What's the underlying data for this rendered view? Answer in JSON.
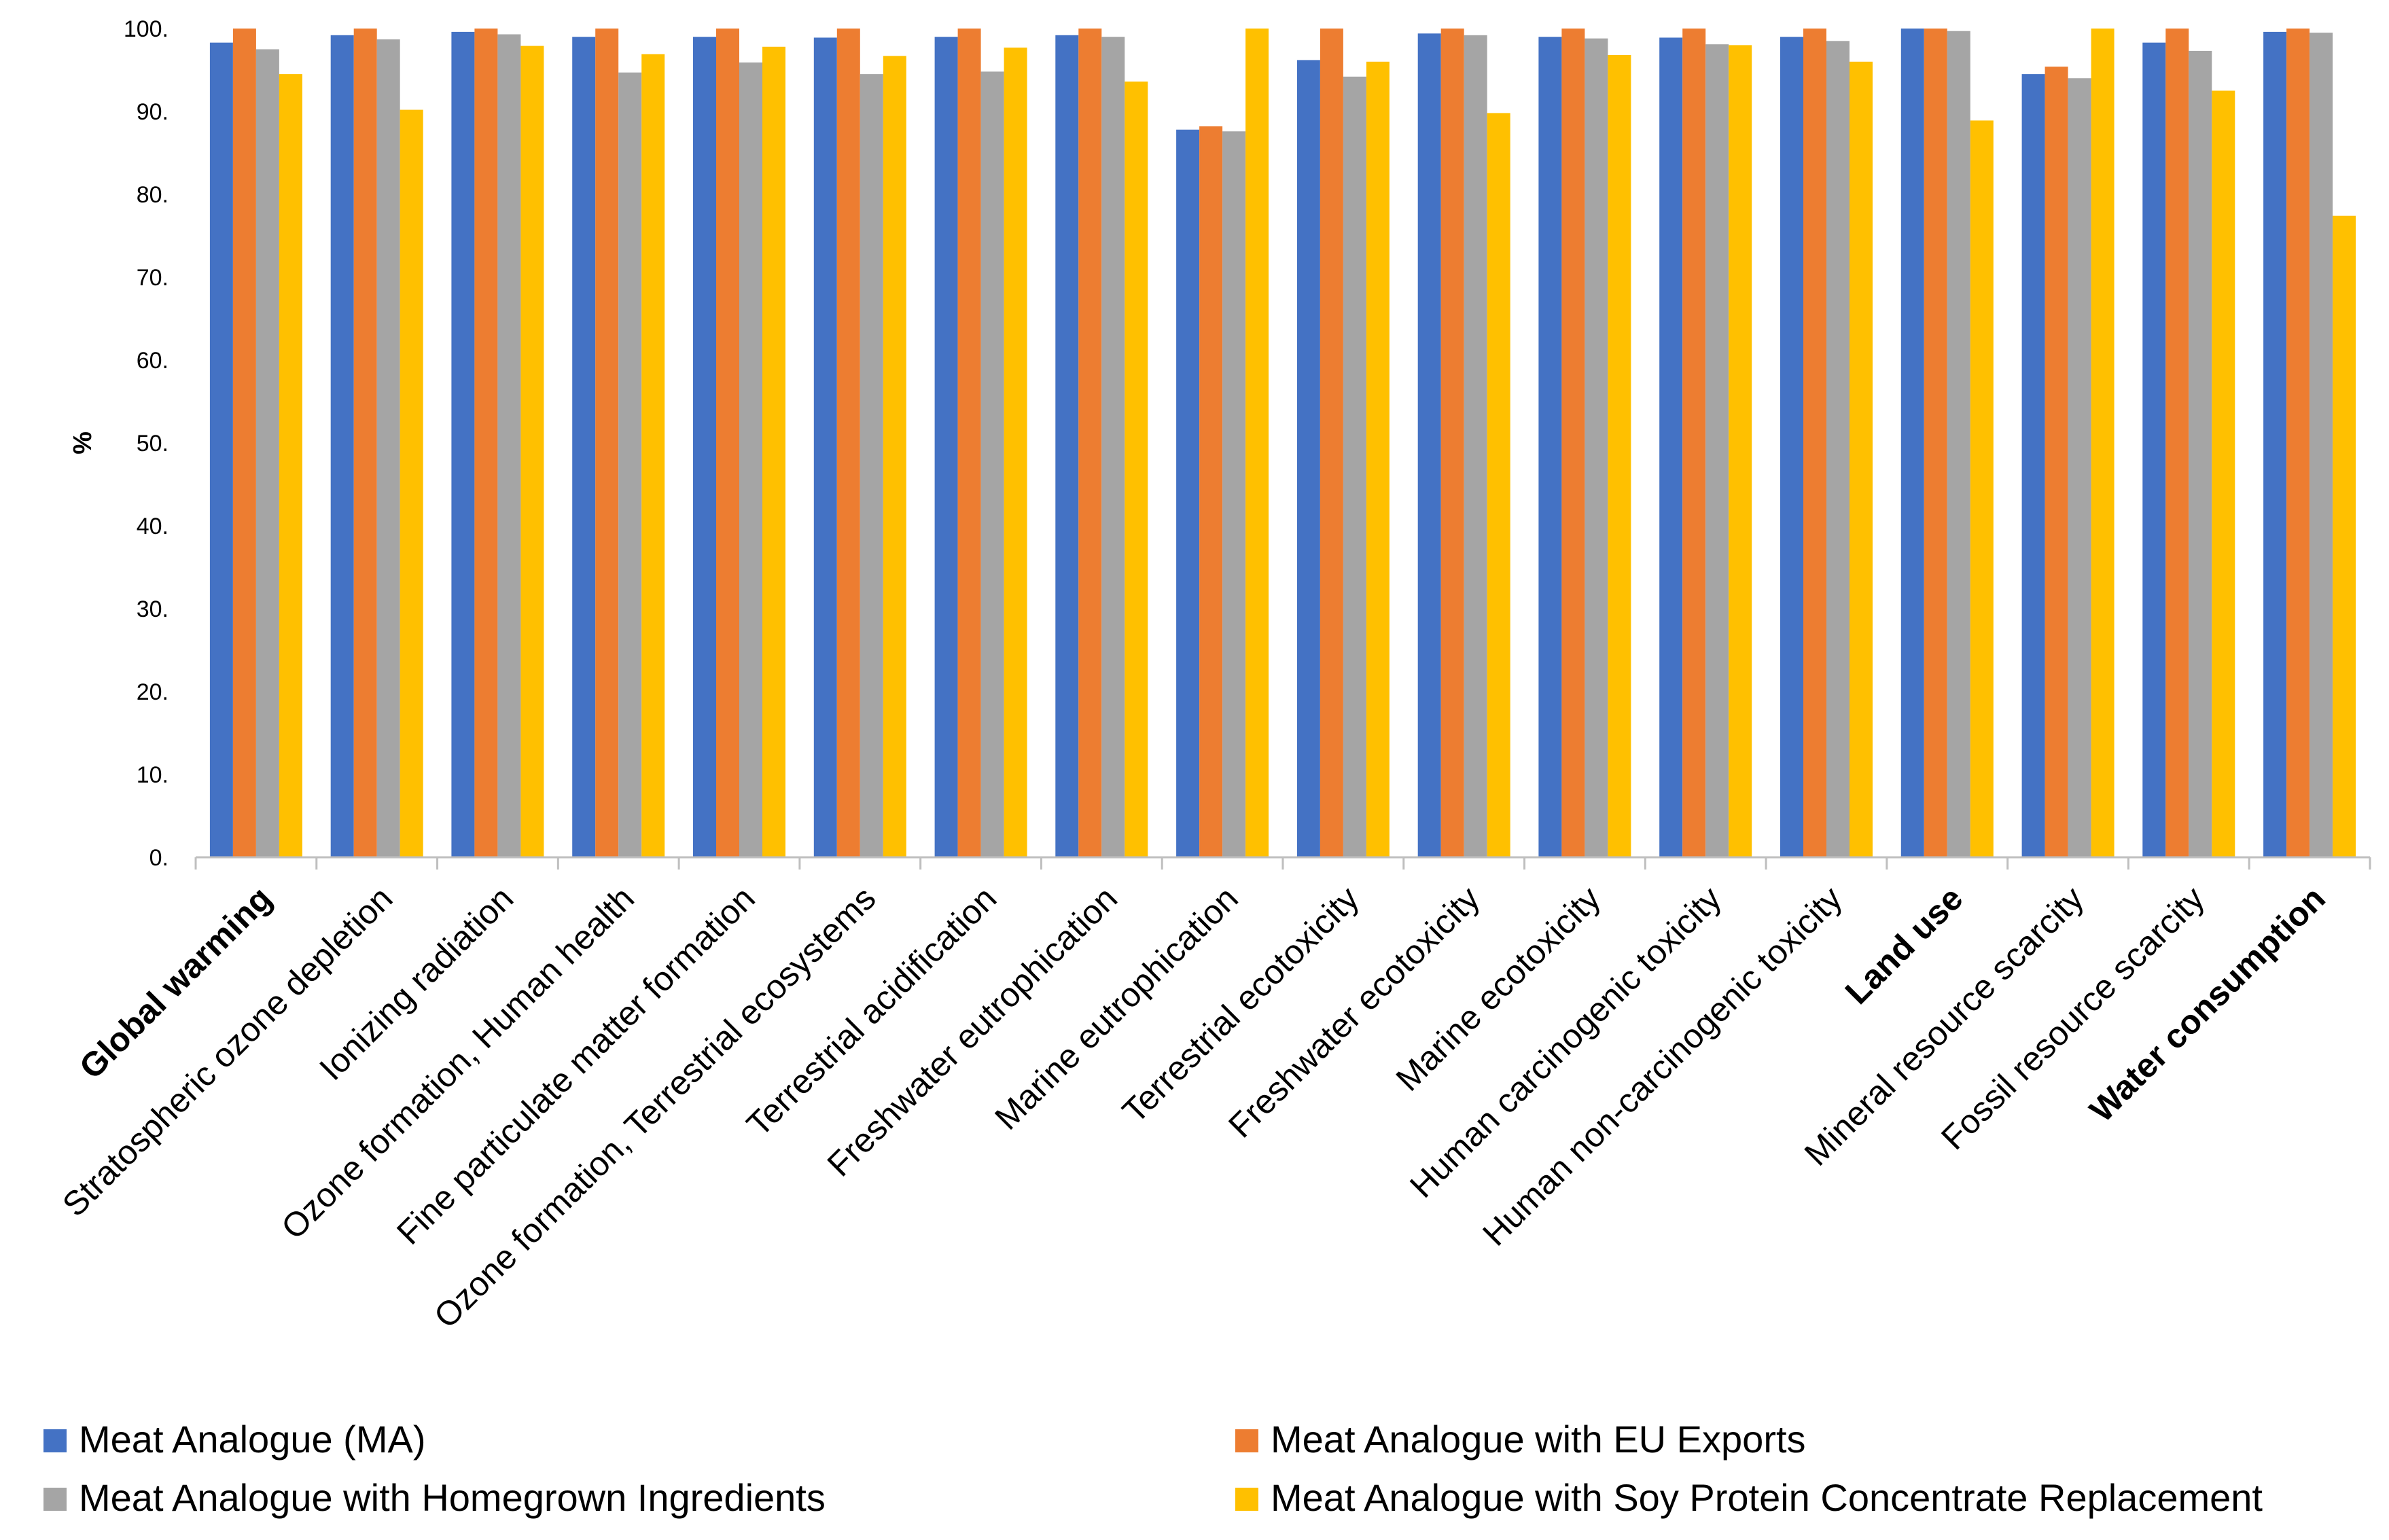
{
  "chart_data": {
    "type": "bar",
    "title": "",
    "xlabel": "",
    "ylabel": "%",
    "ylim": [
      0,
      100
    ],
    "yticks": [
      "0.",
      "10.",
      "20.",
      "30.",
      "40.",
      "50.",
      "60.",
      "70.",
      "80.",
      "90.",
      "100."
    ],
    "grid": false,
    "legend_position": "bottom",
    "categories": [
      {
        "label": "Global warming",
        "bold": true
      },
      {
        "label": "Stratospheric ozone depletion",
        "bold": false
      },
      {
        "label": "Ionizing radiation",
        "bold": false
      },
      {
        "label": "Ozone formation, Human health",
        "bold": false
      },
      {
        "label": "Fine particulate matter formation",
        "bold": false
      },
      {
        "label": "Ozone formation, Terrestrial ecosystems",
        "bold": false
      },
      {
        "label": "Terrestrial acidification",
        "bold": false
      },
      {
        "label": "Freshwater eutrophication",
        "bold": false
      },
      {
        "label": "Marine eutrophication",
        "bold": false
      },
      {
        "label": "Terrestrial ecotoxicity",
        "bold": false
      },
      {
        "label": "Freshwater ecotoxicity",
        "bold": false
      },
      {
        "label": "Marine ecotoxicity",
        "bold": false
      },
      {
        "label": "Human carcinogenic toxicity",
        "bold": false
      },
      {
        "label": "Human non-carcinogenic toxicity",
        "bold": false
      },
      {
        "label": "Land use",
        "bold": true
      },
      {
        "label": "Mineral resource scarcity",
        "bold": false
      },
      {
        "label": "Fossil resource scarcity",
        "bold": false
      },
      {
        "label": "Water consumption",
        "bold": true
      }
    ],
    "series": [
      {
        "name": "Meat Analogue (MA)",
        "color": "#4472C4",
        "values": [
          98.3,
          99.2,
          99.6,
          99.0,
          99.0,
          98.9,
          99.0,
          99.2,
          87.8,
          96.2,
          99.4,
          99.0,
          98.9,
          99.0,
          100.0,
          94.5,
          98.3,
          99.6
        ]
      },
      {
        "name": "Meat Analogue with EU Exports",
        "color": "#ED7D31",
        "values": [
          100.0,
          100.0,
          100.0,
          100.0,
          100.0,
          100.0,
          100.0,
          100.0,
          88.2,
          100.0,
          100.0,
          100.0,
          100.0,
          100.0,
          100.0,
          95.4,
          100.0,
          100.0
        ]
      },
      {
        "name": "Meat Analogue with Homegrown Ingredients",
        "color": "#A5A5A5",
        "values": [
          97.5,
          98.7,
          99.3,
          94.7,
          95.9,
          94.5,
          94.8,
          99.0,
          87.6,
          94.2,
          99.2,
          98.8,
          98.1,
          98.5,
          99.7,
          94.0,
          97.3,
          99.5
        ]
      },
      {
        "name": "Meat Analogue with Soy Protein Concentrate Replacement",
        "color": "#FFC000",
        "values": [
          94.5,
          90.2,
          97.9,
          96.9,
          97.8,
          96.7,
          97.7,
          93.6,
          100.0,
          96.0,
          89.8,
          96.8,
          98.0,
          96.0,
          88.9,
          100.0,
          92.5,
          77.4
        ]
      }
    ]
  }
}
